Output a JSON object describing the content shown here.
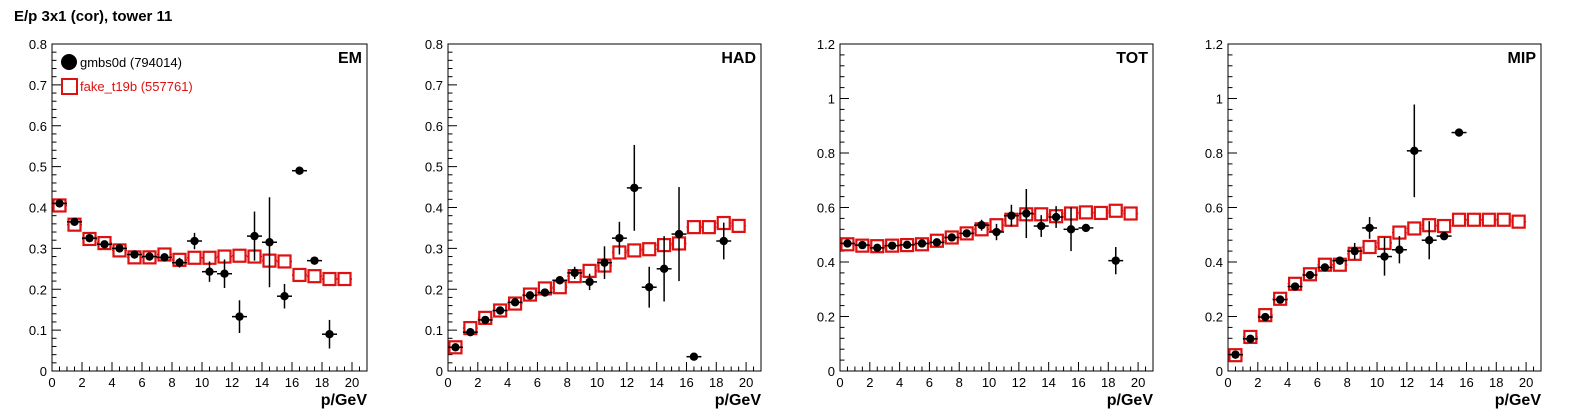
{
  "title": "E/p 3x1 (cor), tower 11",
  "colors": {
    "gmbs": "#000000",
    "fake": "#dd1111"
  },
  "legend": [
    {
      "label": "gmbs0d (794014)",
      "marker": "filled-circle",
      "color": "#000000"
    },
    {
      "label": "fake_t19b (557761)",
      "marker": "open-square",
      "color": "#dd1111"
    }
  ],
  "chart_data": [
    {
      "type": "scatter",
      "panel_label": "EM",
      "xlabel": "p/GeV",
      "xlim": [
        0,
        21
      ],
      "ylim": [
        0,
        0.8
      ],
      "xticks": [
        0,
        2,
        4,
        6,
        8,
        10,
        12,
        14,
        16,
        18,
        20
      ],
      "yticks": [
        0,
        0.1,
        0.2,
        0.3,
        0.4,
        0.5,
        0.6,
        0.7,
        0.8
      ],
      "series": [
        {
          "name": "gmbs0d (794014)",
          "marker": "circle",
          "points": [
            [
              0.5,
              0.41,
              0.005
            ],
            [
              1.5,
              0.365,
              0.005
            ],
            [
              2.5,
              0.325,
              0.005
            ],
            [
              3.5,
              0.31,
              0.006
            ],
            [
              4.5,
              0.3,
              0.006
            ],
            [
              5.5,
              0.285,
              0.007
            ],
            [
              6.5,
              0.28,
              0.008
            ],
            [
              7.5,
              0.278,
              0.01
            ],
            [
              8.5,
              0.265,
              0.012
            ],
            [
              9.5,
              0.318,
              0.02
            ],
            [
              10.5,
              0.243,
              0.025
            ],
            [
              11.5,
              0.238,
              0.035
            ],
            [
              12.5,
              0.133,
              0.04
            ],
            [
              13.5,
              0.33,
              0.06
            ],
            [
              14.5,
              0.315,
              0.11
            ],
            [
              15.5,
              0.183,
              0.03
            ],
            [
              16.5,
              0.49,
              0.004
            ],
            [
              17.5,
              0.27,
              0.004
            ],
            [
              18.5,
              0.09,
              0.035
            ]
          ]
        },
        {
          "name": "fake_t19b (557761)",
          "marker": "square",
          "points": [
            [
              0.5,
              0.405
            ],
            [
              1.5,
              0.358
            ],
            [
              2.5,
              0.323
            ],
            [
              3.5,
              0.313
            ],
            [
              4.5,
              0.295
            ],
            [
              5.5,
              0.278
            ],
            [
              6.5,
              0.278
            ],
            [
              7.5,
              0.285
            ],
            [
              8.5,
              0.272
            ],
            [
              9.5,
              0.277
            ],
            [
              10.5,
              0.277
            ],
            [
              11.5,
              0.28
            ],
            [
              12.5,
              0.282
            ],
            [
              13.5,
              0.28
            ],
            [
              14.5,
              0.27
            ],
            [
              15.5,
              0.268
            ],
            [
              16.5,
              0.235
            ],
            [
              17.5,
              0.232
            ],
            [
              18.5,
              0.225
            ],
            [
              19.5,
              0.225
            ]
          ]
        }
      ]
    },
    {
      "type": "scatter",
      "panel_label": "HAD",
      "xlabel": "p/GeV",
      "xlim": [
        0,
        21
      ],
      "ylim": [
        0,
        0.8
      ],
      "xticks": [
        0,
        2,
        4,
        6,
        8,
        10,
        12,
        14,
        16,
        18,
        20
      ],
      "yticks": [
        0,
        0.1,
        0.2,
        0.3,
        0.4,
        0.5,
        0.6,
        0.7,
        0.8
      ],
      "series": [
        {
          "name": "gmbs0d (794014)",
          "marker": "circle",
          "points": [
            [
              0.5,
              0.058,
              0.004
            ],
            [
              1.5,
              0.095,
              0.004
            ],
            [
              2.5,
              0.125,
              0.004
            ],
            [
              3.5,
              0.148,
              0.005
            ],
            [
              4.5,
              0.168,
              0.005
            ],
            [
              5.5,
              0.185,
              0.006
            ],
            [
              6.5,
              0.192,
              0.007
            ],
            [
              7.5,
              0.222,
              0.008
            ],
            [
              8.5,
              0.24,
              0.015
            ],
            [
              9.5,
              0.218,
              0.02
            ],
            [
              10.5,
              0.265,
              0.04
            ],
            [
              11.5,
              0.325,
              0.04
            ],
            [
              12.5,
              0.448,
              0.105
            ],
            [
              13.5,
              0.205,
              0.05
            ],
            [
              14.5,
              0.25,
              0.08
            ],
            [
              15.5,
              0.335,
              0.115
            ],
            [
              16.5,
              0.035,
              0.003
            ],
            [
              18.5,
              0.318,
              0.045
            ]
          ]
        },
        {
          "name": "fake_t19b (557761)",
          "marker": "square",
          "points": [
            [
              0.5,
              0.058
            ],
            [
              1.5,
              0.105
            ],
            [
              2.5,
              0.13
            ],
            [
              3.5,
              0.148
            ],
            [
              4.5,
              0.165
            ],
            [
              5.5,
              0.187
            ],
            [
              6.5,
              0.202
            ],
            [
              7.5,
              0.205
            ],
            [
              8.5,
              0.232
            ],
            [
              9.5,
              0.245
            ],
            [
              10.5,
              0.258
            ],
            [
              11.5,
              0.29
            ],
            [
              12.5,
              0.295
            ],
            [
              13.5,
              0.298
            ],
            [
              14.5,
              0.308
            ],
            [
              15.5,
              0.312
            ],
            [
              16.5,
              0.352
            ],
            [
              17.5,
              0.352
            ],
            [
              18.5,
              0.362
            ],
            [
              19.5,
              0.355
            ]
          ]
        }
      ]
    },
    {
      "type": "scatter",
      "panel_label": "TOT",
      "xlabel": "p/GeV",
      "xlim": [
        0,
        21
      ],
      "ylim": [
        0,
        1.2
      ],
      "xticks": [
        0,
        2,
        4,
        6,
        8,
        10,
        12,
        14,
        16,
        18,
        20
      ],
      "yticks": [
        0,
        0.2,
        0.4,
        0.6,
        0.8,
        1,
        1.2
      ],
      "series": [
        {
          "name": "gmbs0d (794014)",
          "marker": "circle",
          "points": [
            [
              0.5,
              0.468,
              0.005
            ],
            [
              1.5,
              0.462,
              0.005
            ],
            [
              2.5,
              0.452,
              0.005
            ],
            [
              3.5,
              0.46,
              0.006
            ],
            [
              4.5,
              0.463,
              0.006
            ],
            [
              5.5,
              0.468,
              0.006
            ],
            [
              6.5,
              0.472,
              0.008
            ],
            [
              7.5,
              0.49,
              0.01
            ],
            [
              8.5,
              0.505,
              0.012
            ],
            [
              9.5,
              0.535,
              0.02
            ],
            [
              10.5,
              0.51,
              0.03
            ],
            [
              11.5,
              0.57,
              0.04
            ],
            [
              12.5,
              0.578,
              0.09
            ],
            [
              13.5,
              0.532,
              0.04
            ],
            [
              14.5,
              0.565,
              0.04
            ],
            [
              15.5,
              0.52,
              0.08
            ],
            [
              16.5,
              0.525,
              0.006
            ],
            [
              18.5,
              0.405,
              0.05
            ]
          ]
        },
        {
          "name": "fake_t19b (557761)",
          "marker": "square",
          "points": [
            [
              0.5,
              0.465
            ],
            [
              1.5,
              0.46
            ],
            [
              2.5,
              0.458
            ],
            [
              3.5,
              0.46
            ],
            [
              4.5,
              0.462
            ],
            [
              5.5,
              0.465
            ],
            [
              6.5,
              0.478
            ],
            [
              7.5,
              0.49
            ],
            [
              8.5,
              0.505
            ],
            [
              9.5,
              0.52
            ],
            [
              10.5,
              0.535
            ],
            [
              11.5,
              0.555
            ],
            [
              12.5,
              0.575
            ],
            [
              13.5,
              0.575
            ],
            [
              14.5,
              0.568
            ],
            [
              15.5,
              0.578
            ],
            [
              16.5,
              0.582
            ],
            [
              17.5,
              0.58
            ],
            [
              18.5,
              0.588
            ],
            [
              19.5,
              0.578
            ]
          ]
        }
      ]
    },
    {
      "type": "scatter",
      "panel_label": "MIP",
      "xlabel": "p/GeV",
      "xlim": [
        0,
        21
      ],
      "ylim": [
        0,
        1.2
      ],
      "xticks": [
        0,
        2,
        4,
        6,
        8,
        10,
        12,
        14,
        16,
        18,
        20
      ],
      "yticks": [
        0,
        0.2,
        0.4,
        0.6,
        0.8,
        1,
        1.2
      ],
      "series": [
        {
          "name": "gmbs0d (794014)",
          "marker": "circle",
          "points": [
            [
              0.5,
              0.06,
              0.005
            ],
            [
              1.5,
              0.118,
              0.005
            ],
            [
              2.5,
              0.198,
              0.006
            ],
            [
              3.5,
              0.262,
              0.007
            ],
            [
              4.5,
              0.31,
              0.008
            ],
            [
              5.5,
              0.352,
              0.01
            ],
            [
              6.5,
              0.38,
              0.012
            ],
            [
              7.5,
              0.405,
              0.015
            ],
            [
              8.5,
              0.44,
              0.03
            ],
            [
              9.5,
              0.525,
              0.04
            ],
            [
              10.5,
              0.42,
              0.07
            ],
            [
              11.5,
              0.445,
              0.05
            ],
            [
              12.5,
              0.808,
              0.17
            ],
            [
              13.5,
              0.48,
              0.07
            ],
            [
              14.5,
              0.495,
              0.006
            ],
            [
              15.5,
              0.875,
              0.004
            ]
          ]
        },
        {
          "name": "fake_t19b (557761)",
          "marker": "square",
          "points": [
            [
              0.5,
              0.058
            ],
            [
              1.5,
              0.125
            ],
            [
              2.5,
              0.205
            ],
            [
              3.5,
              0.265
            ],
            [
              4.5,
              0.32
            ],
            [
              5.5,
              0.355
            ],
            [
              6.5,
              0.39
            ],
            [
              7.5,
              0.39
            ],
            [
              8.5,
              0.43
            ],
            [
              9.5,
              0.455
            ],
            [
              10.5,
              0.47
            ],
            [
              11.5,
              0.508
            ],
            [
              12.5,
              0.523
            ],
            [
              13.5,
              0.535
            ],
            [
              14.5,
              0.532
            ],
            [
              15.5,
              0.555
            ],
            [
              16.5,
              0.555
            ],
            [
              17.5,
              0.555
            ],
            [
              18.5,
              0.555
            ],
            [
              19.5,
              0.548
            ]
          ]
        }
      ]
    }
  ]
}
